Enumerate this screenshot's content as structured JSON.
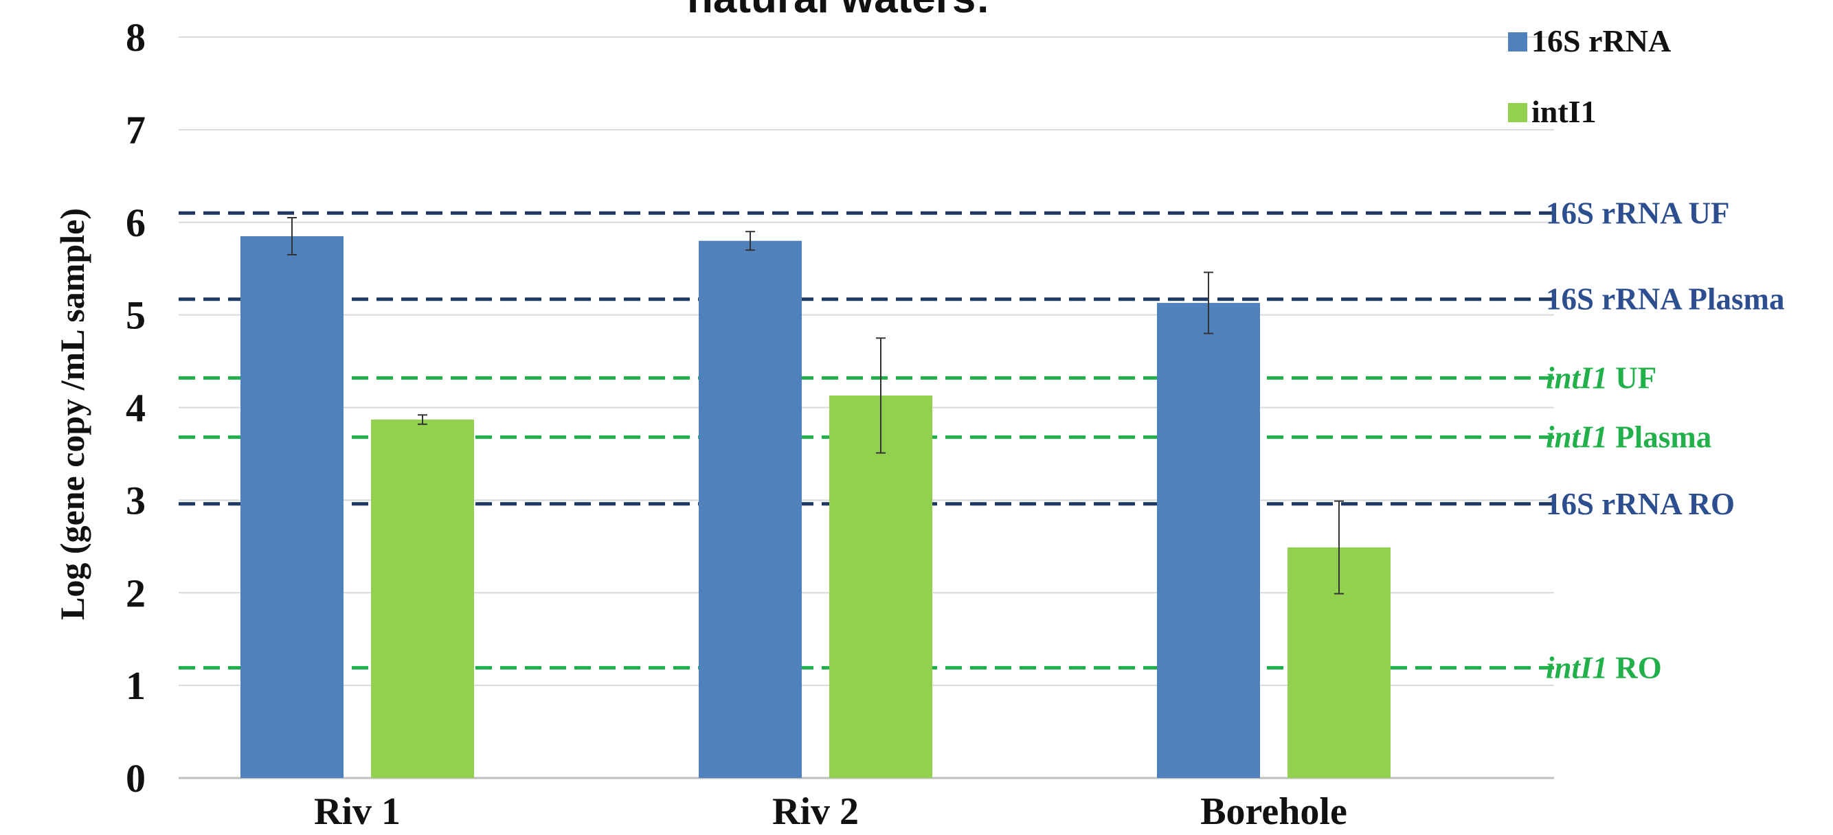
{
  "chart_data": {
    "type": "bar",
    "title": "natural waters:",
    "ylabel": "Log (gene copy /mL sample)",
    "xlabel": "",
    "categories": [
      "Riv 1",
      "Riv 2",
      "Borehole"
    ],
    "ylim": [
      0,
      8
    ],
    "yticks": [
      "0",
      "1",
      "2",
      "3",
      "4",
      "5",
      "6",
      "7",
      "8"
    ],
    "grid": true,
    "legend_position": "top-right",
    "series": [
      {
        "name": "16S rRNA",
        "color": "#4f81bd",
        "values": [
          5.85,
          5.8,
          5.13
        ],
        "errors": [
          0.2,
          0.1,
          0.33
        ]
      },
      {
        "name": "intI1",
        "color": "#92d050",
        "values": [
          3.87,
          4.13,
          2.49
        ],
        "errors": [
          0.05,
          0.62,
          0.5
        ]
      }
    ],
    "reference_lines": [
      {
        "italic": "",
        "label": "16S rRNA UF",
        "value": 6.1,
        "color": "#1f3864",
        "text_color": "#2e4f8f"
      },
      {
        "italic": "",
        "label": "16S rRNA Plasma",
        "value": 5.17,
        "color": "#1f3864",
        "text_color": "#2e4f8f"
      },
      {
        "italic": "intI1",
        "label": " UF",
        "value": 4.32,
        "color": "#22b04b",
        "text_color": "#22b04b"
      },
      {
        "italic": "intI1",
        "label": " Plasma",
        "value": 3.68,
        "color": "#22b04b",
        "text_color": "#22b04b"
      },
      {
        "italic": "",
        "label": "16S rRNA RO",
        "value": 2.96,
        "color": "#1f3864",
        "text_color": "#2e4f8f"
      },
      {
        "italic": "intI1",
        "label": " RO",
        "value": 1.19,
        "color": "#22b04b",
        "text_color": "#22b04b"
      }
    ]
  }
}
